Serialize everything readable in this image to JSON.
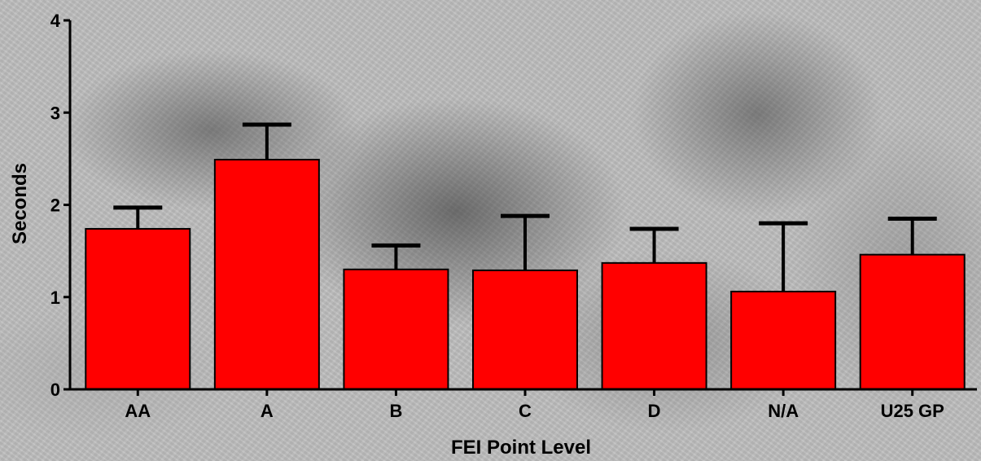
{
  "chart_data": {
    "type": "bar",
    "title": "",
    "xlabel": "FEI Point Level",
    "ylabel": "Seconds",
    "categories": [
      "AA",
      "A",
      "B",
      "C",
      "D",
      "N/A",
      "U25 GP"
    ],
    "values": [
      1.74,
      2.49,
      1.3,
      1.29,
      1.37,
      1.06,
      1.46
    ],
    "error_upper": [
      1.97,
      2.87,
      1.56,
      1.88,
      1.74,
      1.8,
      1.85
    ],
    "yticks": [
      0,
      1,
      2,
      3,
      4
    ],
    "ylim": [
      0,
      4
    ],
    "grid": false,
    "legend": "none",
    "bar_color": "#ff0000",
    "bar_edge_color": "#000000"
  }
}
